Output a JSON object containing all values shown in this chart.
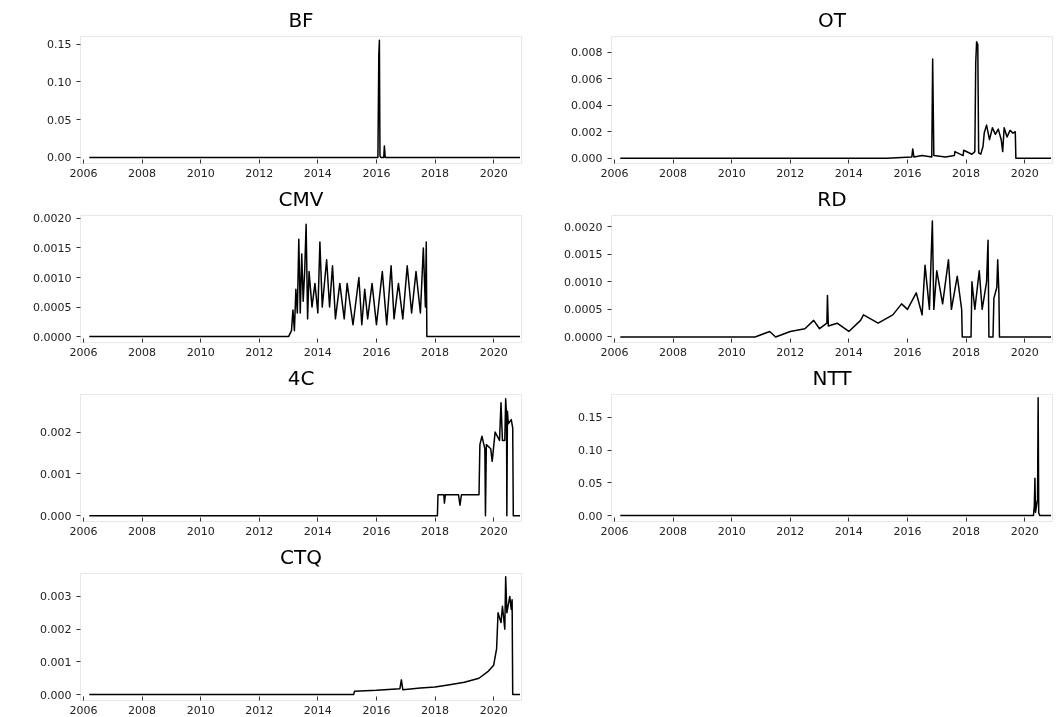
{
  "chart_data": [
    {
      "type": "line",
      "title": "BF",
      "color": "#000000",
      "xlim": [
        2005.9,
        2020.95
      ],
      "xticks": [
        2006,
        2008,
        2010,
        2012,
        2014,
        2016,
        2018,
        2020
      ],
      "ylim": [
        -0.008,
        0.16
      ],
      "yticks": [
        {
          "value": 0,
          "label": "0.00"
        },
        {
          "value": 0.05,
          "label": "0.05"
        },
        {
          "value": 0.1,
          "label": "0.10"
        },
        {
          "value": 0.15,
          "label": "0.15"
        }
      ],
      "x": [
        2006.2,
        2016.05,
        2016.08,
        2016.1,
        2016.12,
        2016.15,
        2016.25,
        2016.27,
        2016.3,
        2020.9
      ],
      "values": [
        0,
        0,
        0.135,
        0.155,
        0.002,
        0,
        0,
        0.015,
        0,
        0
      ]
    },
    {
      "type": "line",
      "title": "OT",
      "color": "#000000",
      "xlim": [
        2005.9,
        2020.95
      ],
      "xticks": [
        2006,
        2008,
        2010,
        2012,
        2014,
        2016,
        2018,
        2020
      ],
      "ylim": [
        -0.0004,
        0.0092
      ],
      "yticks": [
        {
          "value": 0,
          "label": "0.000"
        },
        {
          "value": 0.002,
          "label": "0.002"
        },
        {
          "value": 0.004,
          "label": "0.004"
        },
        {
          "value": 0.006,
          "label": "0.006"
        },
        {
          "value": 0.008,
          "label": "0.008"
        }
      ],
      "x": [
        2006.2,
        2015.3,
        2016.15,
        2016.18,
        2016.22,
        2016.5,
        2016.83,
        2016.86,
        2016.9,
        2017.3,
        2017.6,
        2017.62,
        2017.9,
        2017.92,
        2018.2,
        2018.3,
        2018.33,
        2018.36,
        2018.4,
        2018.43,
        2018.5,
        2018.58,
        2018.62,
        2018.7,
        2018.8,
        2018.9,
        2019.0,
        2019.1,
        2019.2,
        2019.25,
        2019.3,
        2019.4,
        2019.5,
        2019.6,
        2019.68,
        2019.7,
        2020.9
      ],
      "values": [
        0,
        0,
        0.0001,
        0.0007,
        0.0001,
        0.0002,
        0.0001,
        0.0075,
        0.0002,
        0.0001,
        0.0002,
        0.0005,
        0.0002,
        0.0006,
        0.0003,
        0.0005,
        0.0072,
        0.0088,
        0.0086,
        0.0004,
        0.0003,
        0.0009,
        0.0019,
        0.0025,
        0.0014,
        0.0023,
        0.0018,
        0.0022,
        0.0014,
        0.0005,
        0.0023,
        0.0016,
        0.0021,
        0.0019,
        0.002,
        0,
        0
      ]
    },
    {
      "type": "line",
      "title": "CMV",
      "color": "#000000",
      "xlim": [
        2005.9,
        2020.95
      ],
      "xticks": [
        2006,
        2008,
        2010,
        2012,
        2014,
        2016,
        2018,
        2020
      ],
      "ylim": [
        -0.0001,
        0.00205
      ],
      "yticks": [
        {
          "value": 0,
          "label": "0.0000"
        },
        {
          "value": 0.0005,
          "label": "0.0005"
        },
        {
          "value": 0.001,
          "label": "0.0010"
        },
        {
          "value": 0.0015,
          "label": "0.0015"
        },
        {
          "value": 0.002,
          "label": "0.0020"
        }
      ],
      "x": [
        2006.2,
        2013.0,
        2013.1,
        2013.15,
        2013.2,
        2013.25,
        2013.3,
        2013.35,
        2013.4,
        2013.45,
        2013.5,
        2013.55,
        2013.6,
        2013.65,
        2013.7,
        2013.8,
        2013.9,
        2014.0,
        2014.07,
        2014.15,
        2014.3,
        2014.4,
        2014.5,
        2014.6,
        2014.75,
        2014.9,
        2015.0,
        2015.2,
        2015.4,
        2015.5,
        2015.6,
        2015.7,
        2015.85,
        2016.0,
        2016.2,
        2016.35,
        2016.5,
        2016.6,
        2016.75,
        2016.9,
        2017.05,
        2017.2,
        2017.35,
        2017.5,
        2017.6,
        2017.67,
        2017.7,
        2017.72,
        2020.9
      ],
      "values": [
        0,
        0,
        0.0001,
        0.00045,
        0.0001,
        0.0008,
        0.0004,
        0.00165,
        0.0004,
        0.0014,
        0.0006,
        0.0011,
        0.0019,
        0.0003,
        0.0011,
        0.0005,
        0.0009,
        0.0004,
        0.0016,
        0.0005,
        0.0013,
        0.0005,
        0.0012,
        0.0003,
        0.0009,
        0.0003,
        0.0009,
        0.0002,
        0.001,
        0.0002,
        0.0008,
        0.0003,
        0.0009,
        0.0002,
        0.0011,
        0.0002,
        0.0012,
        0.0003,
        0.0009,
        0.0003,
        0.0012,
        0.0004,
        0.0011,
        0.0004,
        0.0015,
        0.0005,
        0.0016,
        0,
        0
      ]
    },
    {
      "type": "line",
      "title": "RD",
      "color": "#000000",
      "xlim": [
        2005.9,
        2020.95
      ],
      "xticks": [
        2006,
        2008,
        2010,
        2012,
        2014,
        2016,
        2018,
        2020
      ],
      "ylim": [
        -0.0001,
        0.0022
      ],
      "yticks": [
        {
          "value": 0,
          "label": "0.0000"
        },
        {
          "value": 0.0005,
          "label": "0.0005"
        },
        {
          "value": 0.001,
          "label": "0.0010"
        },
        {
          "value": 0.0015,
          "label": "0.0015"
        },
        {
          "value": 0.002,
          "label": "0.0020"
        }
      ],
      "x": [
        2006.2,
        2007.5,
        2008,
        2009,
        2010,
        2010.8,
        2011.3,
        2011.5,
        2012,
        2012.5,
        2012.8,
        2013.0,
        2013.25,
        2013.27,
        2013.3,
        2013.6,
        2014.0,
        2014.4,
        2014.5,
        2015.0,
        2015.5,
        2015.8,
        2016.0,
        2016.3,
        2016.5,
        2016.6,
        2016.75,
        2016.85,
        2016.9,
        2017.0,
        2017.2,
        2017.4,
        2017.5,
        2017.7,
        2017.85,
        2017.87,
        2018.17,
        2018.2,
        2018.3,
        2018.45,
        2018.55,
        2018.7,
        2018.75,
        2018.78,
        2018.92,
        2018.95,
        2019.05,
        2019.08,
        2019.12,
        2019.14,
        2020.9
      ],
      "values": [
        0,
        0,
        0,
        0,
        0,
        0,
        0.0001,
        0,
        0.0001,
        0.00015,
        0.0003,
        0.00015,
        0.00025,
        0.00075,
        0.0002,
        0.00025,
        0.0001,
        0.0003,
        0.0004,
        0.00025,
        0.0004,
        0.0006,
        0.0005,
        0.0008,
        0.0004,
        0.0013,
        0.0005,
        0.0021,
        0.0005,
        0.0012,
        0.0006,
        0.0014,
        0.0005,
        0.0011,
        0.0005,
        0,
        0,
        0.001,
        0.0005,
        0.0012,
        0.0005,
        0.001,
        0.00175,
        0,
        0,
        0.0007,
        0.0009,
        0.0014,
        0.0008,
        0,
        0
      ]
    },
    {
      "type": "line",
      "title": "4C",
      "color": "#000000",
      "xlim": [
        2005.9,
        2020.95
      ],
      "xticks": [
        2006,
        2008,
        2010,
        2012,
        2014,
        2016,
        2018,
        2020
      ],
      "ylim": [
        -0.00014,
        0.0029
      ],
      "yticks": [
        {
          "value": 0,
          "label": "0.000"
        },
        {
          "value": 0.001,
          "label": "0.001"
        },
        {
          "value": 0.002,
          "label": "0.002"
        }
      ],
      "x": [
        2006.2,
        2018.08,
        2018.1,
        2018.3,
        2018.32,
        2018.35,
        2018.8,
        2018.85,
        2018.9,
        2019.5,
        2019.53,
        2019.6,
        2019.7,
        2019.72,
        2019.75,
        2019.9,
        2019.95,
        2020.05,
        2020.2,
        2020.25,
        2020.3,
        2020.38,
        2020.41,
        2020.44,
        2020.45,
        2020.47,
        2020.5,
        2020.6,
        2020.65,
        2020.67,
        2020.9
      ],
      "values": [
        0,
        0,
        0.0005,
        0.0005,
        0.0003,
        0.0005,
        0.0005,
        0.00025,
        0.0005,
        0.0005,
        0.0017,
        0.0019,
        0.0016,
        0,
        0.0017,
        0.0016,
        0.0013,
        0.002,
        0.0018,
        0.0027,
        0.0018,
        0.0018,
        0.0028,
        0.0024,
        0,
        0.0025,
        0.0022,
        0.0023,
        0.0021,
        0,
        0
      ]
    },
    {
      "type": "line",
      "title": "NTT",
      "color": "#000000",
      "xlim": [
        2005.9,
        2020.95
      ],
      "xticks": [
        2006,
        2008,
        2010,
        2012,
        2014,
        2016,
        2018,
        2020
      ],
      "ylim": [
        -0.009,
        0.185
      ],
      "yticks": [
        {
          "value": 0,
          "label": "0.00"
        },
        {
          "value": 0.05,
          "label": "0.05"
        },
        {
          "value": 0.1,
          "label": "0.10"
        },
        {
          "value": 0.15,
          "label": "0.15"
        }
      ],
      "x": [
        2006.2,
        2020.3,
        2020.33,
        2020.35,
        2020.37,
        2020.42,
        2020.44,
        2020.46,
        2020.48,
        2020.52,
        2020.9
      ],
      "values": [
        0,
        0,
        0.015,
        0.057,
        0.005,
        0.02,
        0.025,
        0.18,
        0.004,
        0,
        0
      ]
    },
    {
      "type": "line",
      "title": "CTQ",
      "color": "#000000",
      "xlim": [
        2005.9,
        2020.95
      ],
      "xticks": [
        2006,
        2008,
        2010,
        2012,
        2014,
        2016,
        2018,
        2020
      ],
      "ylim": [
        -0.00018,
        0.0037
      ],
      "yticks": [
        {
          "value": 0,
          "label": "0.000"
        },
        {
          "value": 0.001,
          "label": "0.001"
        },
        {
          "value": 0.002,
          "label": "0.002"
        },
        {
          "value": 0.003,
          "label": "0.003"
        }
      ],
      "x": [
        2006.2,
        2015.22,
        2015.25,
        2016,
        2016.8,
        2016.85,
        2016.9,
        2017.5,
        2018,
        2018.5,
        2019,
        2019.5,
        2019.8,
        2019.9,
        2020.0,
        2020.1,
        2020.15,
        2020.25,
        2020.3,
        2020.38,
        2020.41,
        2020.45,
        2020.55,
        2020.6,
        2020.63,
        2020.65,
        2020.9
      ],
      "values": [
        0,
        0,
        0.0001,
        0.00013,
        0.00018,
        0.00045,
        0.00015,
        0.0002,
        0.00023,
        0.0003,
        0.00038,
        0.0005,
        0.0007,
        0.0008,
        0.0009,
        0.0014,
        0.0025,
        0.0022,
        0.0027,
        0.002,
        0.0036,
        0.0025,
        0.003,
        0.0026,
        0.0029,
        0,
        0
      ]
    }
  ]
}
